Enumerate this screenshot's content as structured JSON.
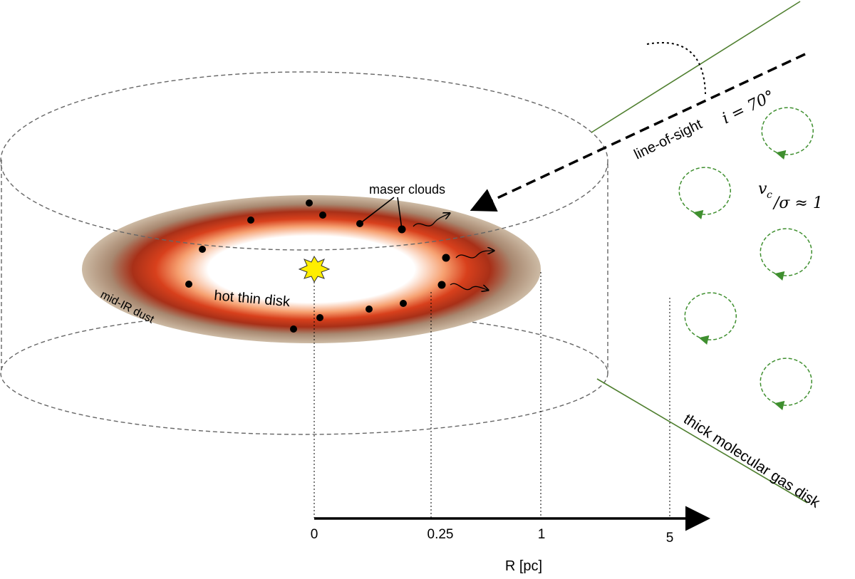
{
  "labels": {
    "maser_clouds": "maser clouds",
    "line_of_sight": "line-of-sight",
    "inclination": "i = 70°",
    "hot_thin_disk": "hot thin disk",
    "mid_ir_dust": "mid-IR dust",
    "thick_disk": "thick molecular gas disk",
    "ratio_v": "v",
    "ratio_sub": "c",
    "ratio_rest": "/σ ≈ 1"
  },
  "axis": {
    "label": "R [pc]",
    "ticks": [
      "0",
      "0.25",
      "1",
      "5"
    ]
  },
  "colors": {
    "green": "#4f7f2f",
    "green_dashed": "#3f8f2f",
    "dust": "#c8b49c",
    "ring": "#b8301a",
    "star": "#ffee00"
  }
}
